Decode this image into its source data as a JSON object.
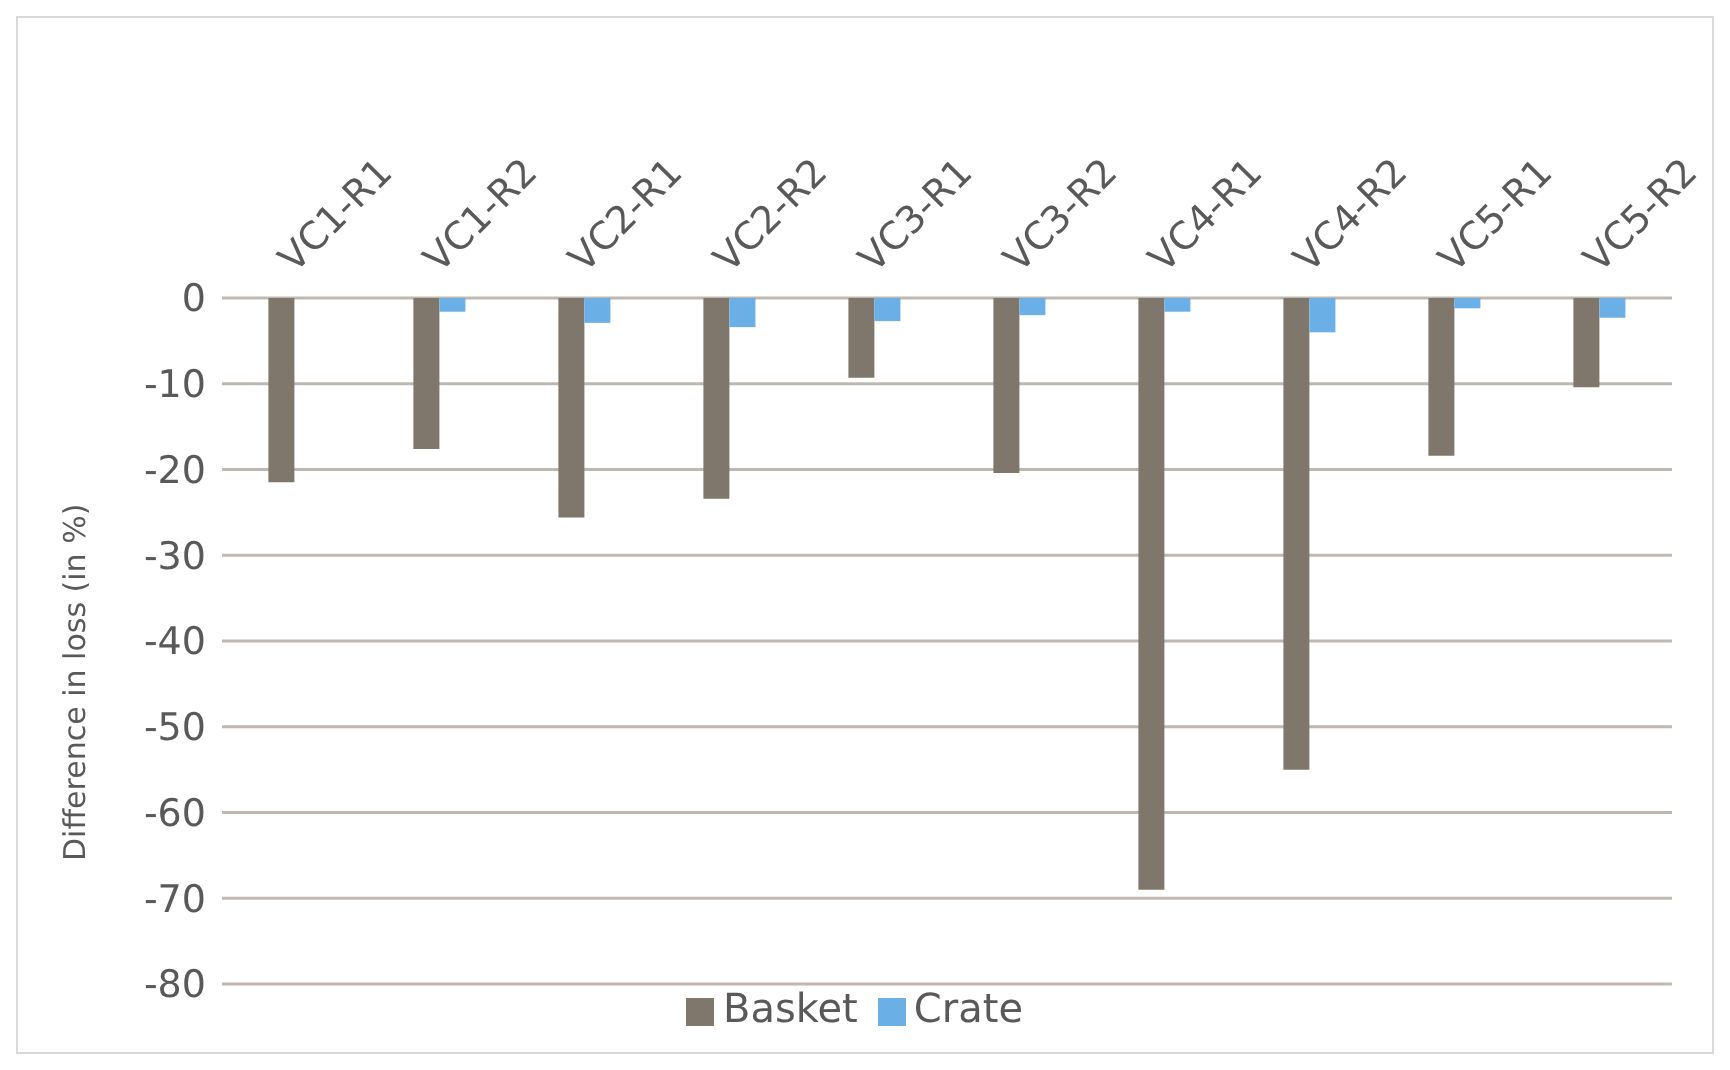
{
  "chart_data": {
    "type": "bar",
    "ylabel": "Difference in loss (in %)",
    "categories": [
      "VC1-R1",
      "VC1-R2",
      "VC2-R1",
      "VC2-R2",
      "VC3-R1",
      "VC3-R2",
      "VC4-R1",
      "VC4-R2",
      "VC5-R1",
      "VC5-R2"
    ],
    "series": [
      {
        "name": "Basket",
        "color": "#7f776b",
        "values": [
          -21.5,
          -17.6,
          -25.6,
          -23.4,
          -9.3,
          -20.4,
          -69,
          -55,
          -18.4,
          -10.4
        ]
      },
      {
        "name": "Crate",
        "color": "#6aafe6",
        "values": [
          0,
          -1.6,
          -2.9,
          -3.4,
          -2.7,
          -2,
          -1.6,
          -4,
          -1.2,
          -2.3
        ]
      }
    ],
    "ylim": [
      -80,
      0
    ],
    "yticks": [
      -80,
      -70,
      -60,
      -50,
      -40,
      -30,
      -20,
      -10,
      0
    ],
    "grid": "y",
    "legend": "bottom"
  }
}
